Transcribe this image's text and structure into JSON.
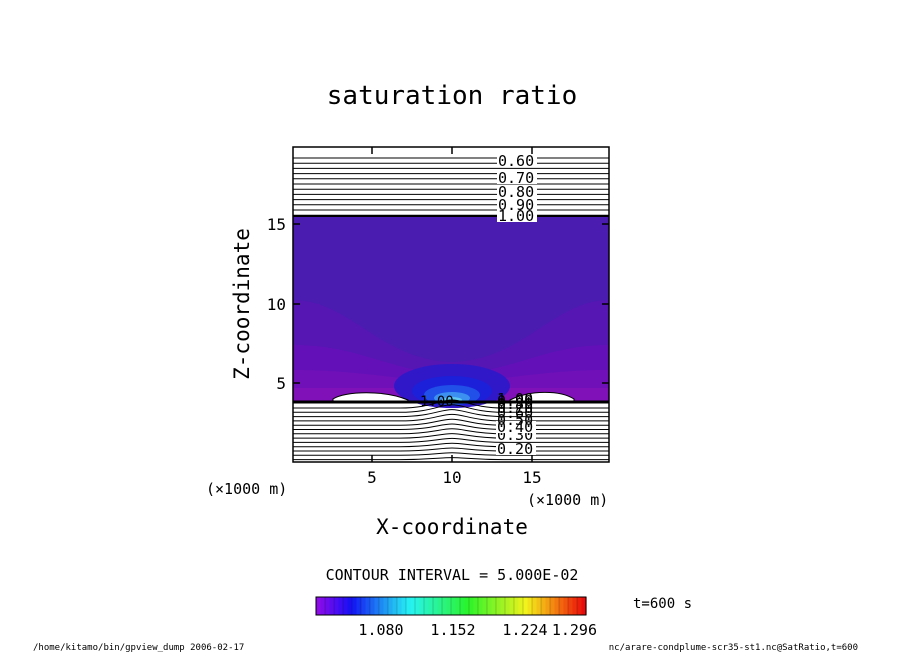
{
  "chart_data": {
    "type": "contour",
    "title": "saturation ratio",
    "xlabel": "X-coordinate",
    "ylabel": "Z-coordinate",
    "x_unit": "(×1000 m)",
    "y_unit": "(×1000 m)",
    "xlim": [
      0,
      19.5
    ],
    "ylim": [
      0,
      19.5
    ],
    "x_ticks": [
      "5",
      "10",
      "15"
    ],
    "y_ticks": [
      "5",
      "10",
      "15"
    ],
    "contour_interval_text": "CONTOUR INTERVAL = 5.000E-02",
    "upper_contour_labels": [
      "0.60",
      "0.70",
      "0.80",
      "0.90",
      "1.00"
    ],
    "lower_contour_labels": [
      "0.20",
      "0.30",
      "0.40",
      "0.50",
      "0.60",
      "0.70",
      "0.80",
      "0.90",
      "1.00"
    ],
    "center_contour_label": "1.00",
    "colorbar_tick_labels": [
      "1.080",
      "1.152",
      "1.224",
      "1.296"
    ],
    "time_label": "t=600 s"
  },
  "footer": {
    "left": "/home/kitamo/bin/gpview_dump  2006-02-17",
    "right": "nc/arare-condplume-scr35-st1.nc@SatRatio,t=600"
  },
  "colors": {
    "background_field": "#4a1cb0",
    "purple_band": "#6010b8",
    "deep_blue": "#1a1cd8",
    "core_cyan": "#58c8f0"
  }
}
